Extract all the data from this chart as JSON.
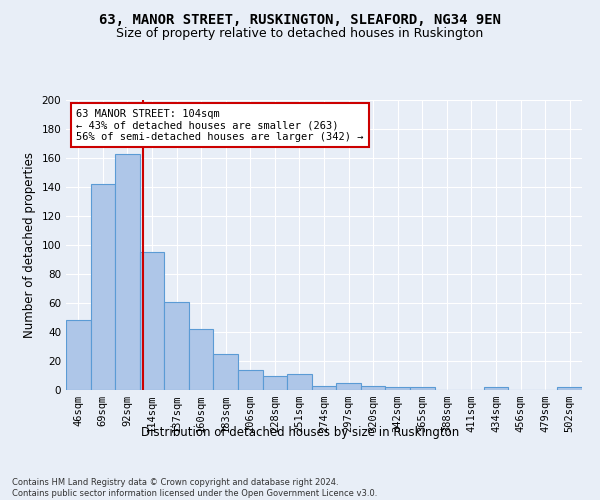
{
  "title": "63, MANOR STREET, RUSKINGTON, SLEAFORD, NG34 9EN",
  "subtitle": "Size of property relative to detached houses in Ruskington",
  "xlabel": "Distribution of detached houses by size in Ruskington",
  "ylabel": "Number of detached properties",
  "bar_labels": [
    "46sqm",
    "69sqm",
    "92sqm",
    "114sqm",
    "137sqm",
    "160sqm",
    "183sqm",
    "206sqm",
    "228sqm",
    "251sqm",
    "274sqm",
    "297sqm",
    "320sqm",
    "342sqm",
    "365sqm",
    "388sqm",
    "411sqm",
    "434sqm",
    "456sqm",
    "479sqm",
    "502sqm"
  ],
  "hist_values": [
    48,
    142,
    163,
    95,
    61,
    42,
    25,
    14,
    10,
    11,
    3,
    5,
    3,
    2,
    2,
    0,
    0,
    2,
    0,
    0,
    2
  ],
  "bar_color": "#aec6e8",
  "bar_edge_color": "#5b9bd5",
  "vline_x_index": 2.62,
  "vline_color": "#cc0000",
  "annotation_text": "63 MANOR STREET: 104sqm\n← 43% of detached houses are smaller (263)\n56% of semi-detached houses are larger (342) →",
  "annotation_box_color": "#ffffff",
  "annotation_box_edge": "#cc0000",
  "ylim": [
    0,
    200
  ],
  "yticks": [
    0,
    20,
    40,
    60,
    80,
    100,
    120,
    140,
    160,
    180,
    200
  ],
  "background_color": "#e8eef7",
  "grid_color": "#ffffff",
  "footnote": "Contains HM Land Registry data © Crown copyright and database right 2024.\nContains public sector information licensed under the Open Government Licence v3.0.",
  "title_fontsize": 10,
  "subtitle_fontsize": 9,
  "xlabel_fontsize": 8.5,
  "ylabel_fontsize": 8.5,
  "tick_fontsize": 7.5,
  "annot_fontsize": 7.5,
  "footnote_fontsize": 6.0
}
